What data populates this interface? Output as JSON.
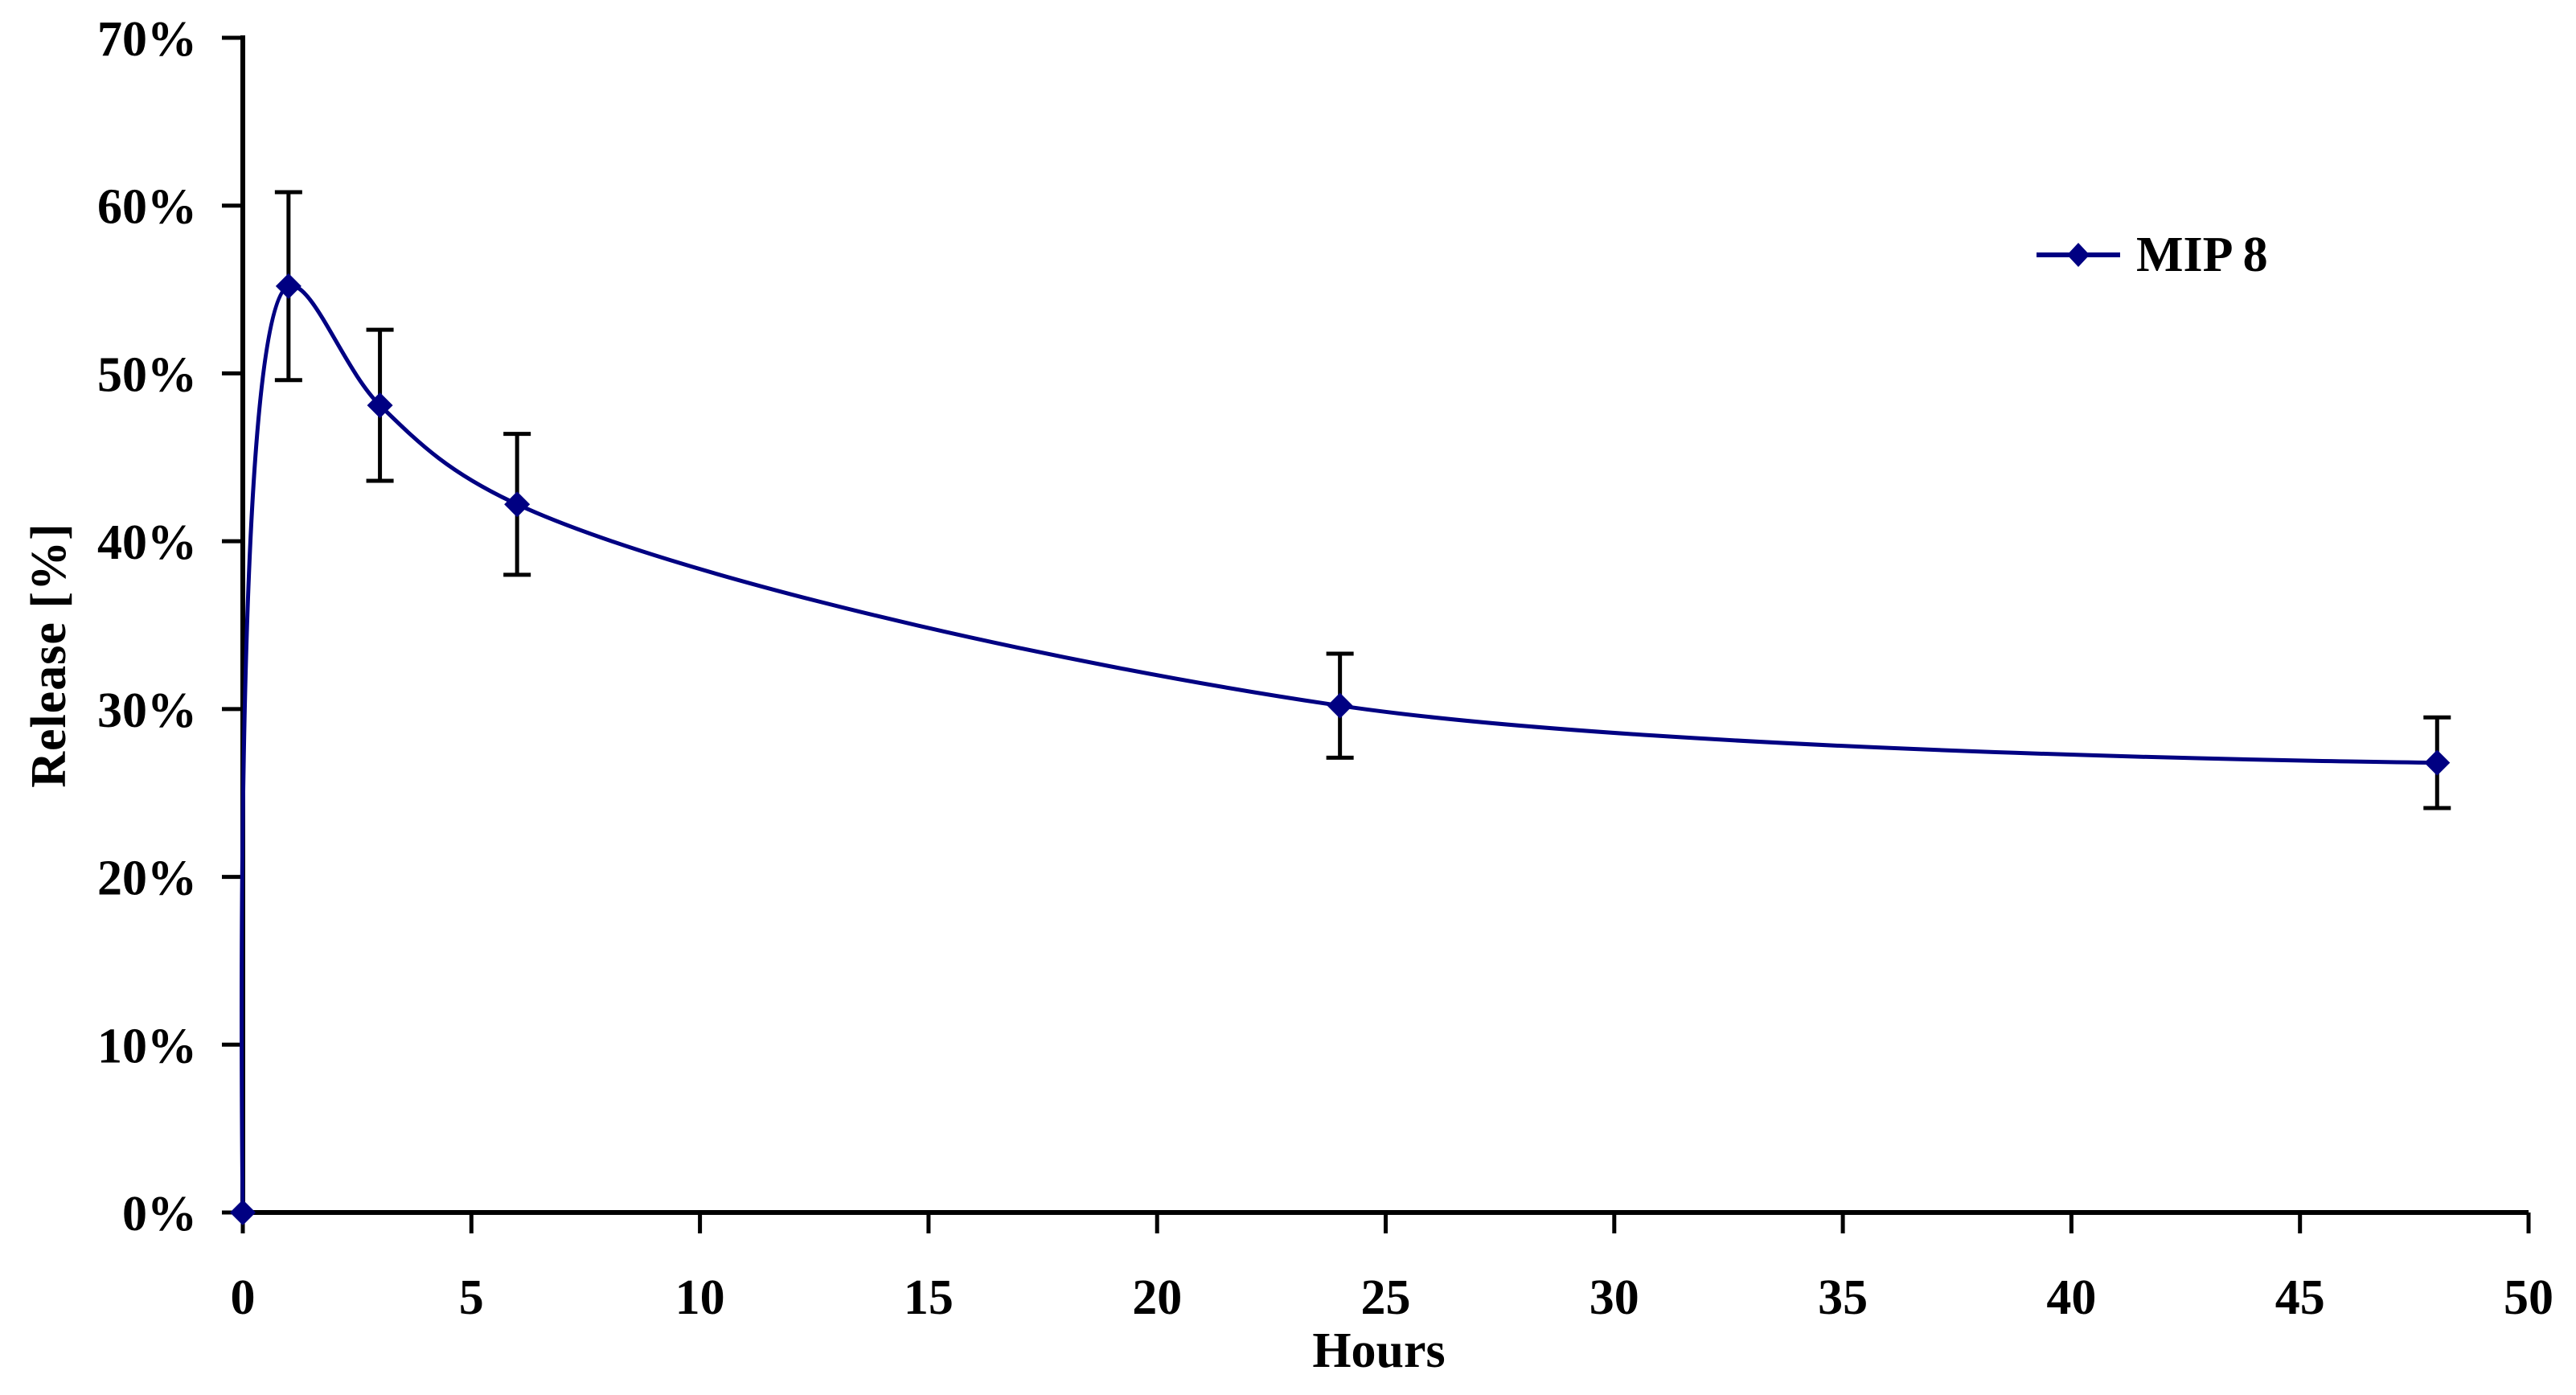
{
  "chart_data": {
    "type": "line",
    "title": "",
    "xlabel": "Hours",
    "ylabel": "Release [%]",
    "xlim": [
      0,
      50
    ],
    "ylim": [
      0,
      70
    ],
    "x_ticks": [
      0,
      5,
      10,
      15,
      20,
      25,
      30,
      35,
      40,
      45,
      50
    ],
    "y_ticks": [
      0,
      10,
      20,
      30,
      40,
      50,
      60,
      70
    ],
    "y_tick_suffix": "%",
    "grid": false,
    "legend_position": "upper-right",
    "line_style": "smooth",
    "series": [
      {
        "name": "MIP 8",
        "color": "#000082",
        "marker": "diamond",
        "points": [
          {
            "x": 0,
            "y": 0,
            "err": 0
          },
          {
            "x": 1,
            "y": 55.2,
            "err": 5.6
          },
          {
            "x": 3,
            "y": 48.1,
            "err": 4.5
          },
          {
            "x": 6,
            "y": 42.2,
            "err": 4.2
          },
          {
            "x": 24,
            "y": 30.2,
            "err": 3.1
          },
          {
            "x": 48,
            "y": 26.8,
            "err": 2.7
          }
        ]
      }
    ]
  },
  "colors": {
    "axis": "#000000",
    "error_bar": "#000000",
    "background": "#ffffff",
    "series": "#000082"
  }
}
